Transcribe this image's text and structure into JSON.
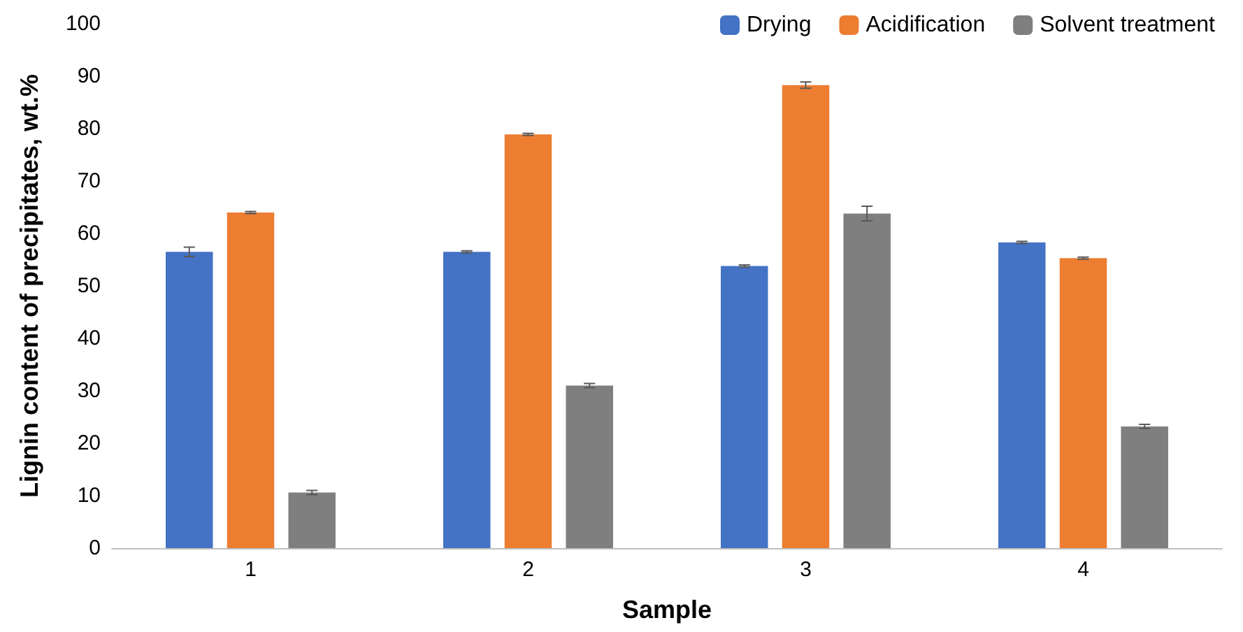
{
  "chart_data": {
    "type": "bar",
    "xlabel": "Sample",
    "ylabel": "Lignin content of precipitates, wt.%",
    "categories": [
      "1",
      "2",
      "3",
      "4"
    ],
    "series": [
      {
        "name": "Drying",
        "color": "#4472c4",
        "values": [
          56.5,
          56.5,
          53.8,
          58.3
        ],
        "errors": [
          0.9,
          0.2,
          0.2,
          0.2
        ]
      },
      {
        "name": "Acidification",
        "color": "#ed7d31",
        "values": [
          64.0,
          78.9,
          88.3,
          55.3
        ],
        "errors": [
          0.2,
          0.2,
          0.6,
          0.2
        ]
      },
      {
        "name": "Solvent treatment",
        "color": "#7f7f7f",
        "values": [
          10.6,
          31.0,
          63.8,
          23.2
        ],
        "errors": [
          0.4,
          0.4,
          1.4,
          0.4
        ]
      }
    ],
    "ylim": [
      0,
      100
    ],
    "yticks": [
      0,
      10,
      20,
      30,
      40,
      50,
      60,
      70,
      80,
      90,
      100
    ],
    "grid": false,
    "legend": "top right"
  }
}
